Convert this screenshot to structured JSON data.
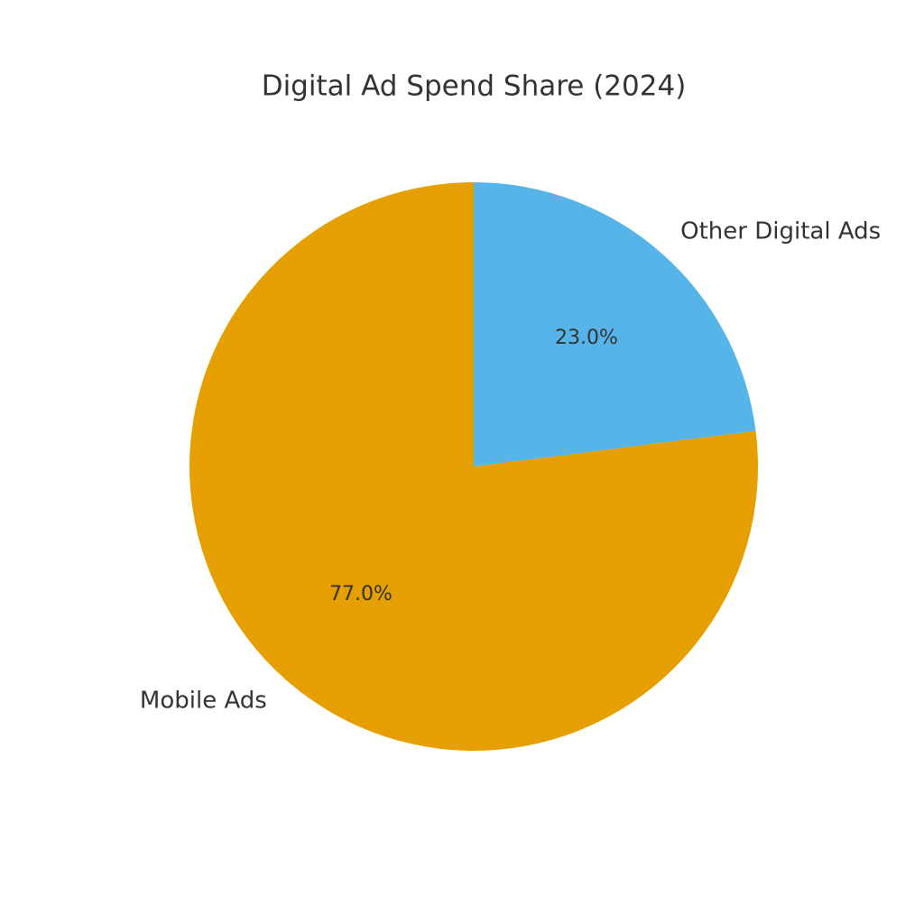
{
  "chart_data": {
    "type": "pie",
    "title": "Digital Ad Spend Share (2024)",
    "categories": [
      "Mobile Ads",
      "Other Digital Ads"
    ],
    "values": [
      77.0,
      23.0
    ],
    "value_labels": [
      "77.0%",
      "23.0%"
    ],
    "colors": [
      "#E69F00",
      "#56B4E9"
    ]
  }
}
